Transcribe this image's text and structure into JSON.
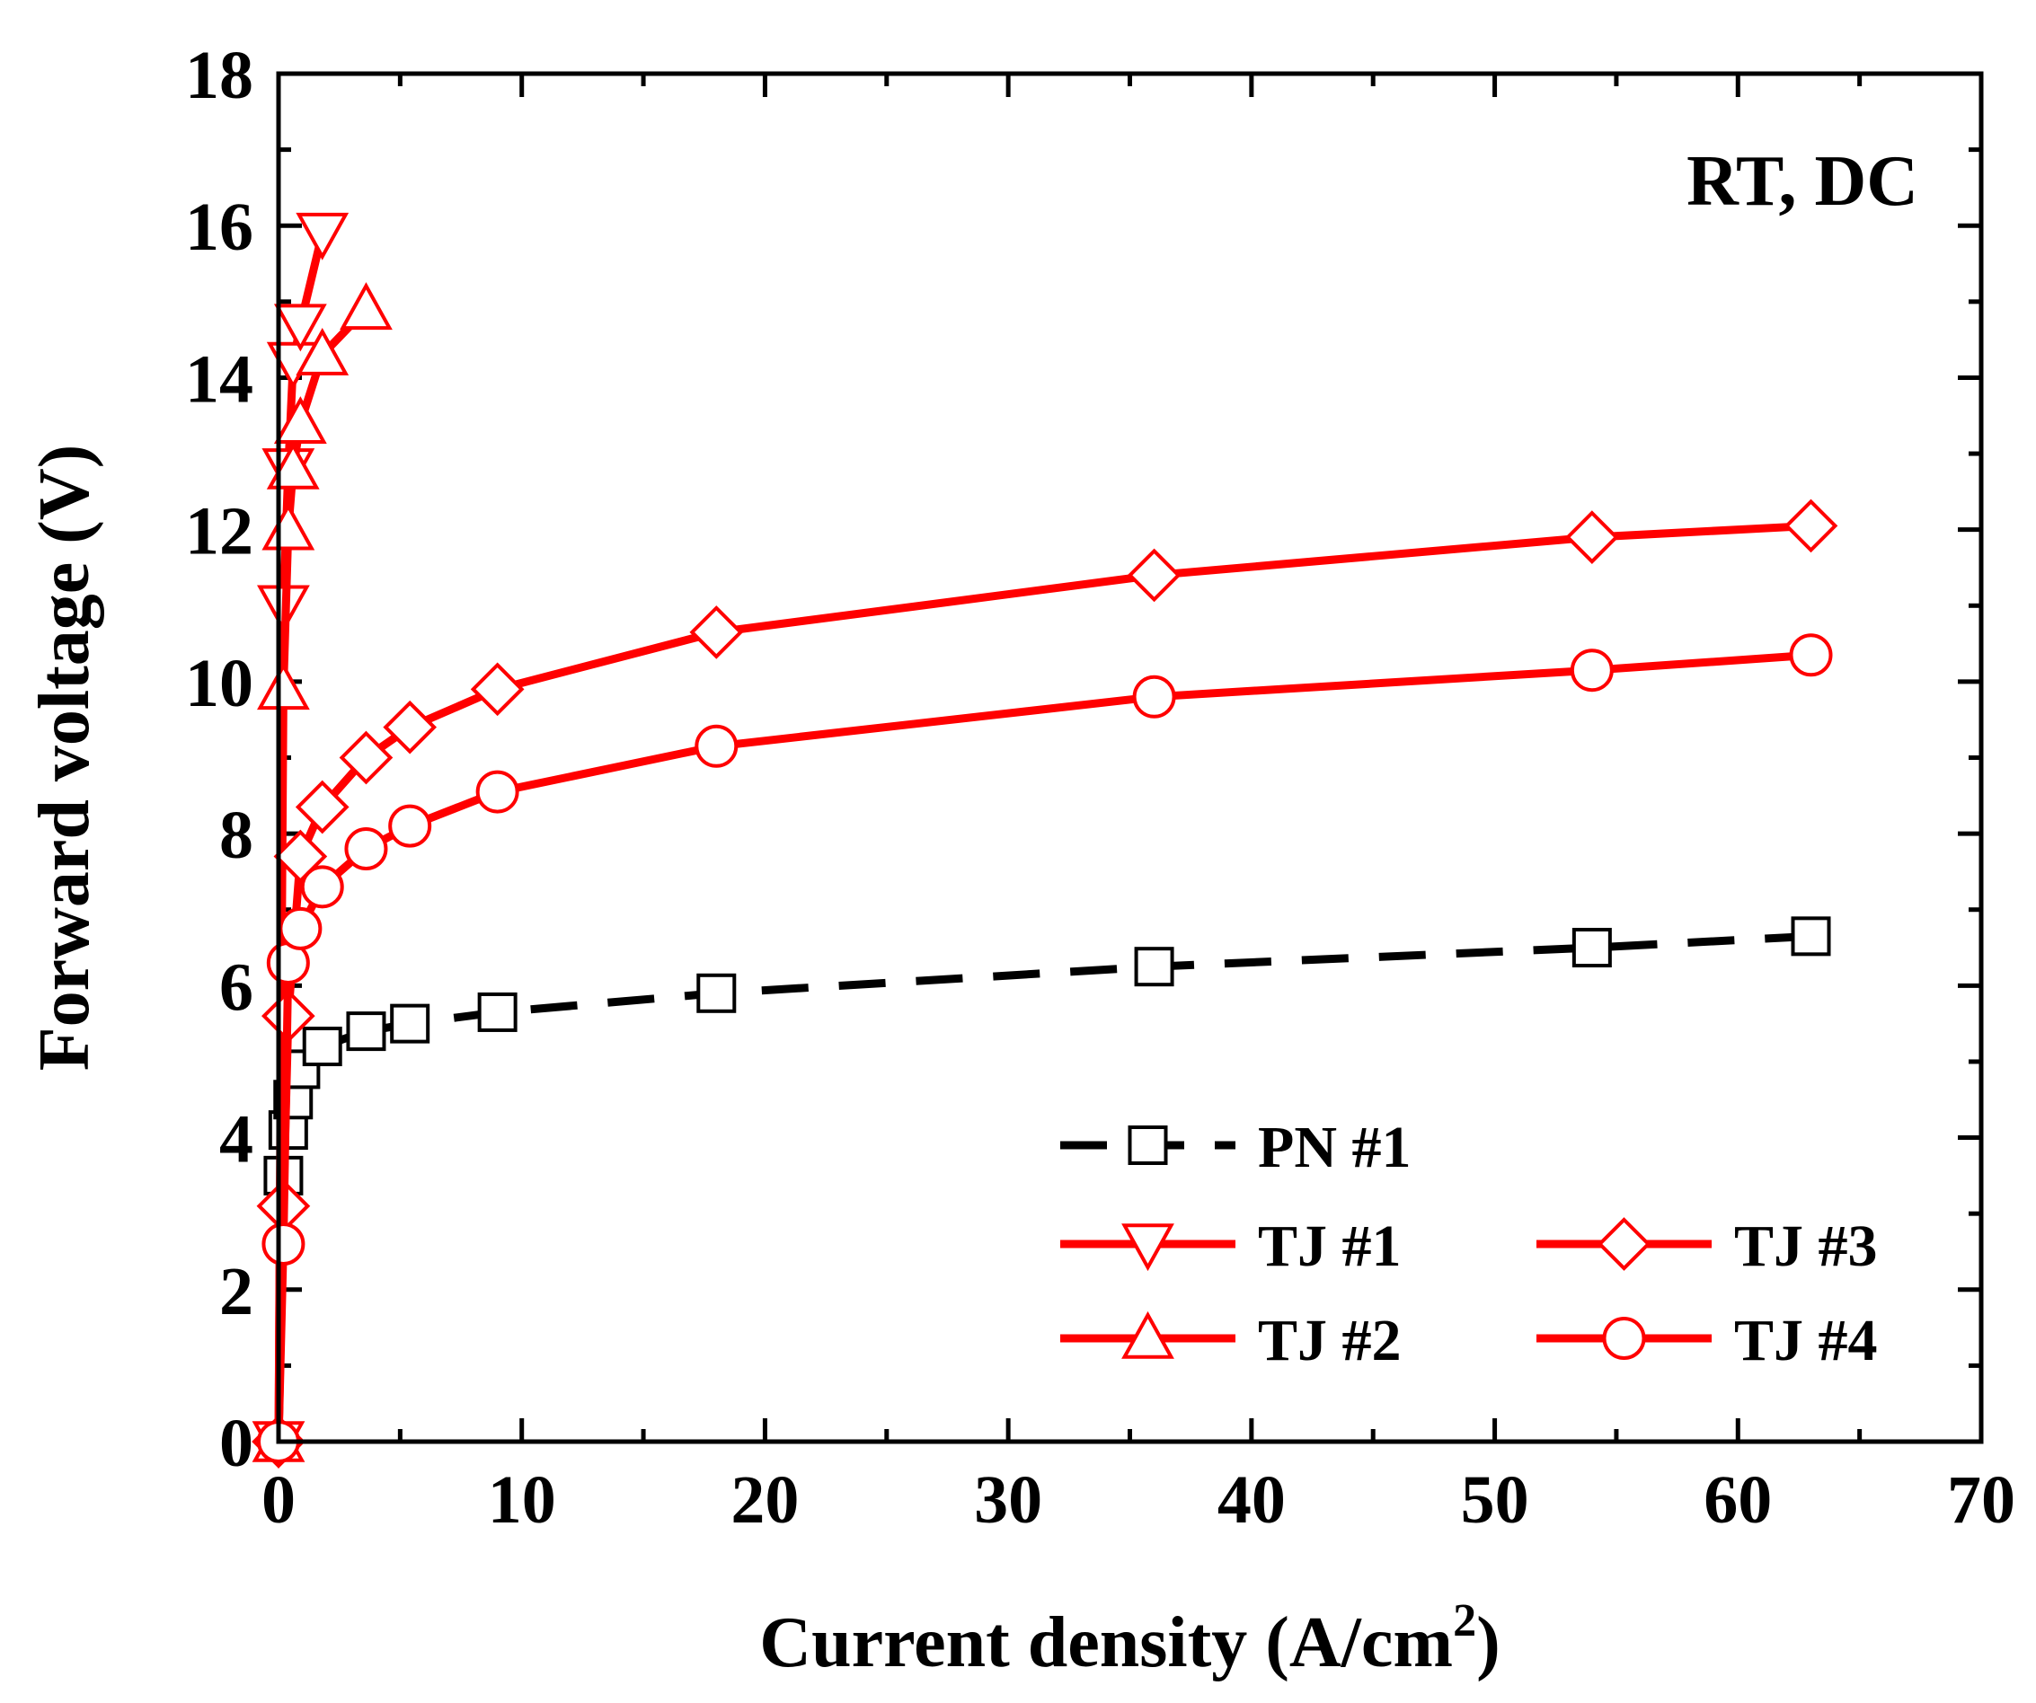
{
  "chart_data": {
    "type": "line",
    "title": "",
    "xlabel": "Current density (A/cm",
    "xlabel_sup": "2",
    "xlabel_end": ")",
    "ylabel": "Forward voltage (V)",
    "xlim": [
      0,
      70
    ],
    "ylim": [
      0,
      18
    ],
    "x_ticks": [
      0,
      10,
      20,
      30,
      40,
      50,
      60,
      70
    ],
    "y_ticks": [
      0,
      2,
      4,
      6,
      8,
      10,
      12,
      14,
      16,
      18
    ],
    "x_tick_labels": [
      "0",
      "10",
      "20",
      "30",
      "40",
      "50",
      "60",
      "70"
    ],
    "y_tick_labels": [
      "0",
      "2",
      "4",
      "6",
      "8",
      "10",
      "12",
      "14",
      "16",
      "18"
    ],
    "annotation": "RT, DC",
    "grid": false,
    "legend_position": "bottom-right",
    "series": [
      {
        "name": "PN #1",
        "color": "#000000",
        "line_style": "dashed",
        "marker": "square",
        "x": [
          0.0,
          0.2,
          0.4,
          0.6,
          0.9,
          1.8,
          3.6,
          5.4,
          9.0,
          18.0,
          36.0,
          54.0,
          63.0
        ],
        "y": [
          0.0,
          3.5,
          4.1,
          4.5,
          4.9,
          5.2,
          5.4,
          5.5,
          5.65,
          5.9,
          6.25,
          6.5,
          6.65
        ]
      },
      {
        "name": "TJ #1",
        "color": "#ff0000",
        "line_style": "solid",
        "marker": "triangle-down",
        "x": [
          0.0,
          0.2,
          0.4,
          0.6,
          0.9,
          1.8
        ],
        "y": [
          0.0,
          11.0,
          12.8,
          14.2,
          14.7,
          15.9
        ]
      },
      {
        "name": "TJ #2",
        "color": "#ff0000",
        "line_style": "solid",
        "marker": "triangle-up",
        "x": [
          0.0,
          0.2,
          0.4,
          0.6,
          0.9,
          1.8,
          3.6
        ],
        "y": [
          0.0,
          9.9,
          12.0,
          12.8,
          13.4,
          14.3,
          14.9
        ]
      },
      {
        "name": "TJ #3",
        "color": "#ff0000",
        "line_style": "solid",
        "marker": "diamond",
        "x": [
          0.0,
          0.2,
          0.4,
          0.9,
          1.8,
          3.6,
          5.4,
          9.0,
          18.0,
          36.0,
          54.0,
          63.0
        ],
        "y": [
          0.0,
          3.1,
          5.6,
          7.7,
          8.35,
          9.0,
          9.4,
          9.9,
          10.65,
          11.4,
          11.9,
          12.05
        ]
      },
      {
        "name": "TJ #4",
        "color": "#ff0000",
        "line_style": "solid",
        "marker": "circle",
        "x": [
          0.0,
          0.2,
          0.4,
          0.9,
          1.8,
          3.6,
          5.4,
          9.0,
          18.0,
          36.0,
          54.0,
          63.0
        ],
        "y": [
          0.0,
          2.6,
          6.3,
          6.75,
          7.3,
          7.8,
          8.1,
          8.55,
          9.15,
          9.8,
          10.15,
          10.35
        ]
      }
    ]
  }
}
